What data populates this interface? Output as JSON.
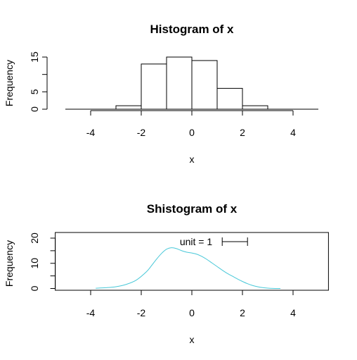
{
  "chart_data": [
    {
      "type": "bar",
      "title": "Histogram of x",
      "xlabel": "x",
      "ylabel": "Frequency",
      "bin_edges": [
        -5,
        -4,
        -3,
        -2,
        -1,
        0,
        1,
        2,
        3,
        4,
        5
      ],
      "values": [
        0,
        0,
        1,
        13,
        15,
        14,
        6,
        1,
        0,
        0
      ],
      "xlim": [
        -5,
        5
      ],
      "ylim": [
        0,
        15
      ],
      "xticks": [
        -4,
        -2,
        0,
        2,
        4
      ],
      "yticks": [
        0,
        5,
        10,
        15
      ],
      "ytick_labels": [
        "0",
        "5",
        "",
        "15"
      ],
      "grid": false
    },
    {
      "type": "line",
      "title": "Shistogram of x",
      "xlabel": "x",
      "ylabel": "Frequency",
      "unit_label": "unit = 1",
      "xlim": [
        -5.4,
        5.4
      ],
      "ylim": [
        0,
        20
      ],
      "xticks": [
        -4,
        -2,
        0,
        2,
        4
      ],
      "yticks": [
        0,
        5,
        10,
        15,
        20
      ],
      "ytick_labels": [
        "0",
        "",
        "10",
        "",
        "20"
      ],
      "line_color": "#48c8d8",
      "x": [
        -3.8,
        -3.4,
        -3.0,
        -2.6,
        -2.2,
        -1.8,
        -1.6,
        -1.4,
        -1.2,
        -1.0,
        -0.8,
        -0.6,
        -0.4,
        -0.2,
        0.0,
        0.2,
        0.4,
        0.6,
        0.8,
        1.0,
        1.2,
        1.4,
        1.6,
        1.8,
        2.0,
        2.2,
        2.4,
        2.6,
        2.8,
        3.0,
        3.2,
        3.5
      ],
      "y": [
        0.1,
        0.3,
        0.7,
        1.6,
        3.3,
        6.6,
        9.0,
        11.6,
        13.9,
        15.6,
        16.2,
        15.8,
        15.0,
        14.4,
        14.1,
        13.6,
        12.7,
        11.5,
        10.1,
        8.7,
        7.3,
        6.0,
        4.9,
        3.8,
        2.8,
        1.9,
        1.2,
        0.7,
        0.35,
        0.15,
        0.05,
        0.0
      ],
      "unit_bar": [
        1.2,
        2.2
      ],
      "grid": false
    }
  ]
}
